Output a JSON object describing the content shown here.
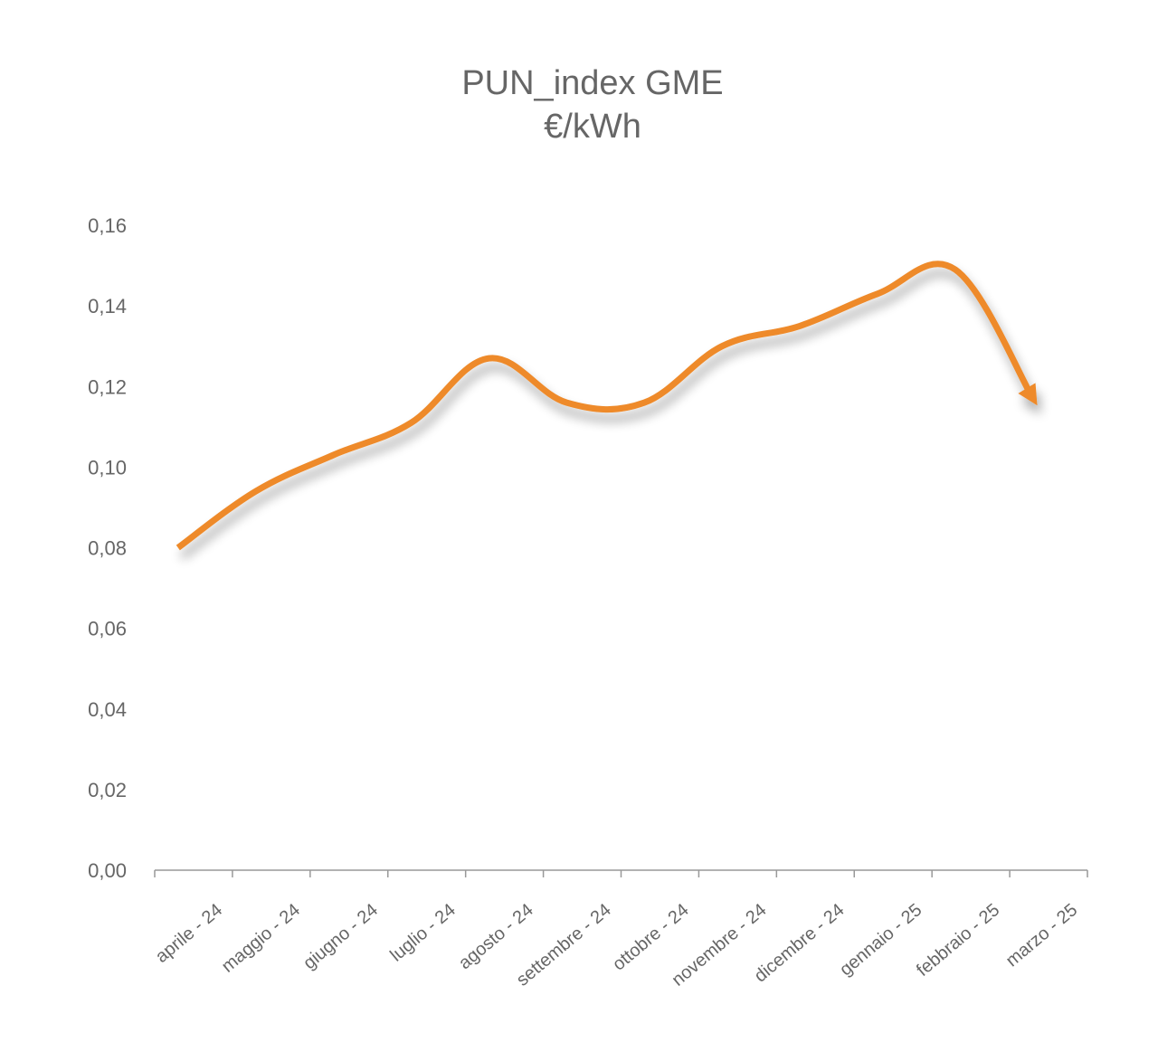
{
  "chart_data": {
    "type": "line",
    "title": "PUN_index GME",
    "subtitle": "€/kWh",
    "xlabel": "",
    "ylabel": "",
    "categories": [
      "aprile - 24",
      "maggio - 24",
      "giugno - 24",
      "luglio - 24",
      "agosto - 24",
      "settembre - 24",
      "ottobre - 24",
      "novembre - 24",
      "dicembre - 24",
      "gennaio - 25",
      "febbraio - 25",
      "marzo - 25"
    ],
    "series": [
      {
        "values": [
          0.08,
          0.094,
          0.103,
          0.111,
          0.127,
          0.116,
          0.116,
          0.13,
          0.135,
          0.143,
          0.149,
          0.117
        ],
        "color": "#EE8A2A",
        "smooth": true,
        "end_marker": "arrow",
        "shadow": true
      }
    ],
    "ylim": [
      0,
      0.16
    ],
    "yticks": [
      "0,00",
      "0,02",
      "0,04",
      "0,06",
      "0,08",
      "0,10",
      "0,12",
      "0,14",
      "0,16"
    ],
    "grid": false,
    "legend": "none",
    "colors": {
      "text": "#666666",
      "axis": "#999999",
      "line": "#EE8A2A"
    }
  }
}
